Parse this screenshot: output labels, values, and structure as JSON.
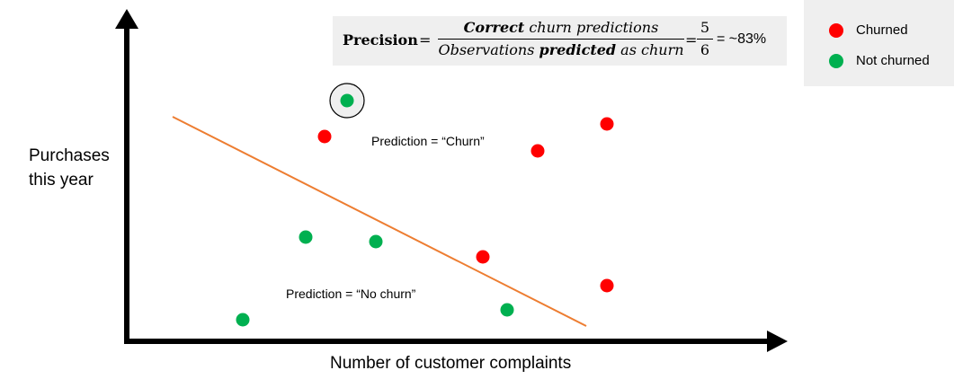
{
  "chart_data": {
    "type": "scatter",
    "xlabel": "Number of customer complaints",
    "ylabel_lines": [
      "Purchases",
      "this year"
    ],
    "series": [
      {
        "name": "Churned",
        "color": "#ff0000",
        "points": [
          [
            361,
            152
          ],
          [
            598,
            168
          ],
          [
            675,
            138
          ],
          [
            537,
            286
          ],
          [
            675,
            318
          ]
        ]
      },
      {
        "name": "Not churned",
        "color": "#00b050",
        "points": [
          [
            386,
            112
          ],
          [
            340,
            264
          ],
          [
            418,
            269
          ],
          [
            270,
            356
          ],
          [
            564,
            345
          ]
        ]
      }
    ],
    "highlighted_point": [
      386,
      112
    ],
    "decision_line": {
      "color": "#ed7d31"
    },
    "region_labels": {
      "churn": "Prediction = “Churn”",
      "no_churn": "Prediction = “No churn”"
    }
  },
  "formula": {
    "lhs": "Precision",
    "numerator_bold": "Correct",
    "numerator_rest": " churn predictions",
    "denominator_start": "Observations ",
    "denominator_bold": "predicted",
    "denominator_end": " as churn",
    "fraction_num": "5",
    "fraction_den": "6",
    "result": "= ~83%"
  },
  "legend": {
    "items": [
      {
        "label": "Churned",
        "color": "#ff0000"
      },
      {
        "label": "Not churned",
        "color": "#00b050"
      }
    ]
  }
}
